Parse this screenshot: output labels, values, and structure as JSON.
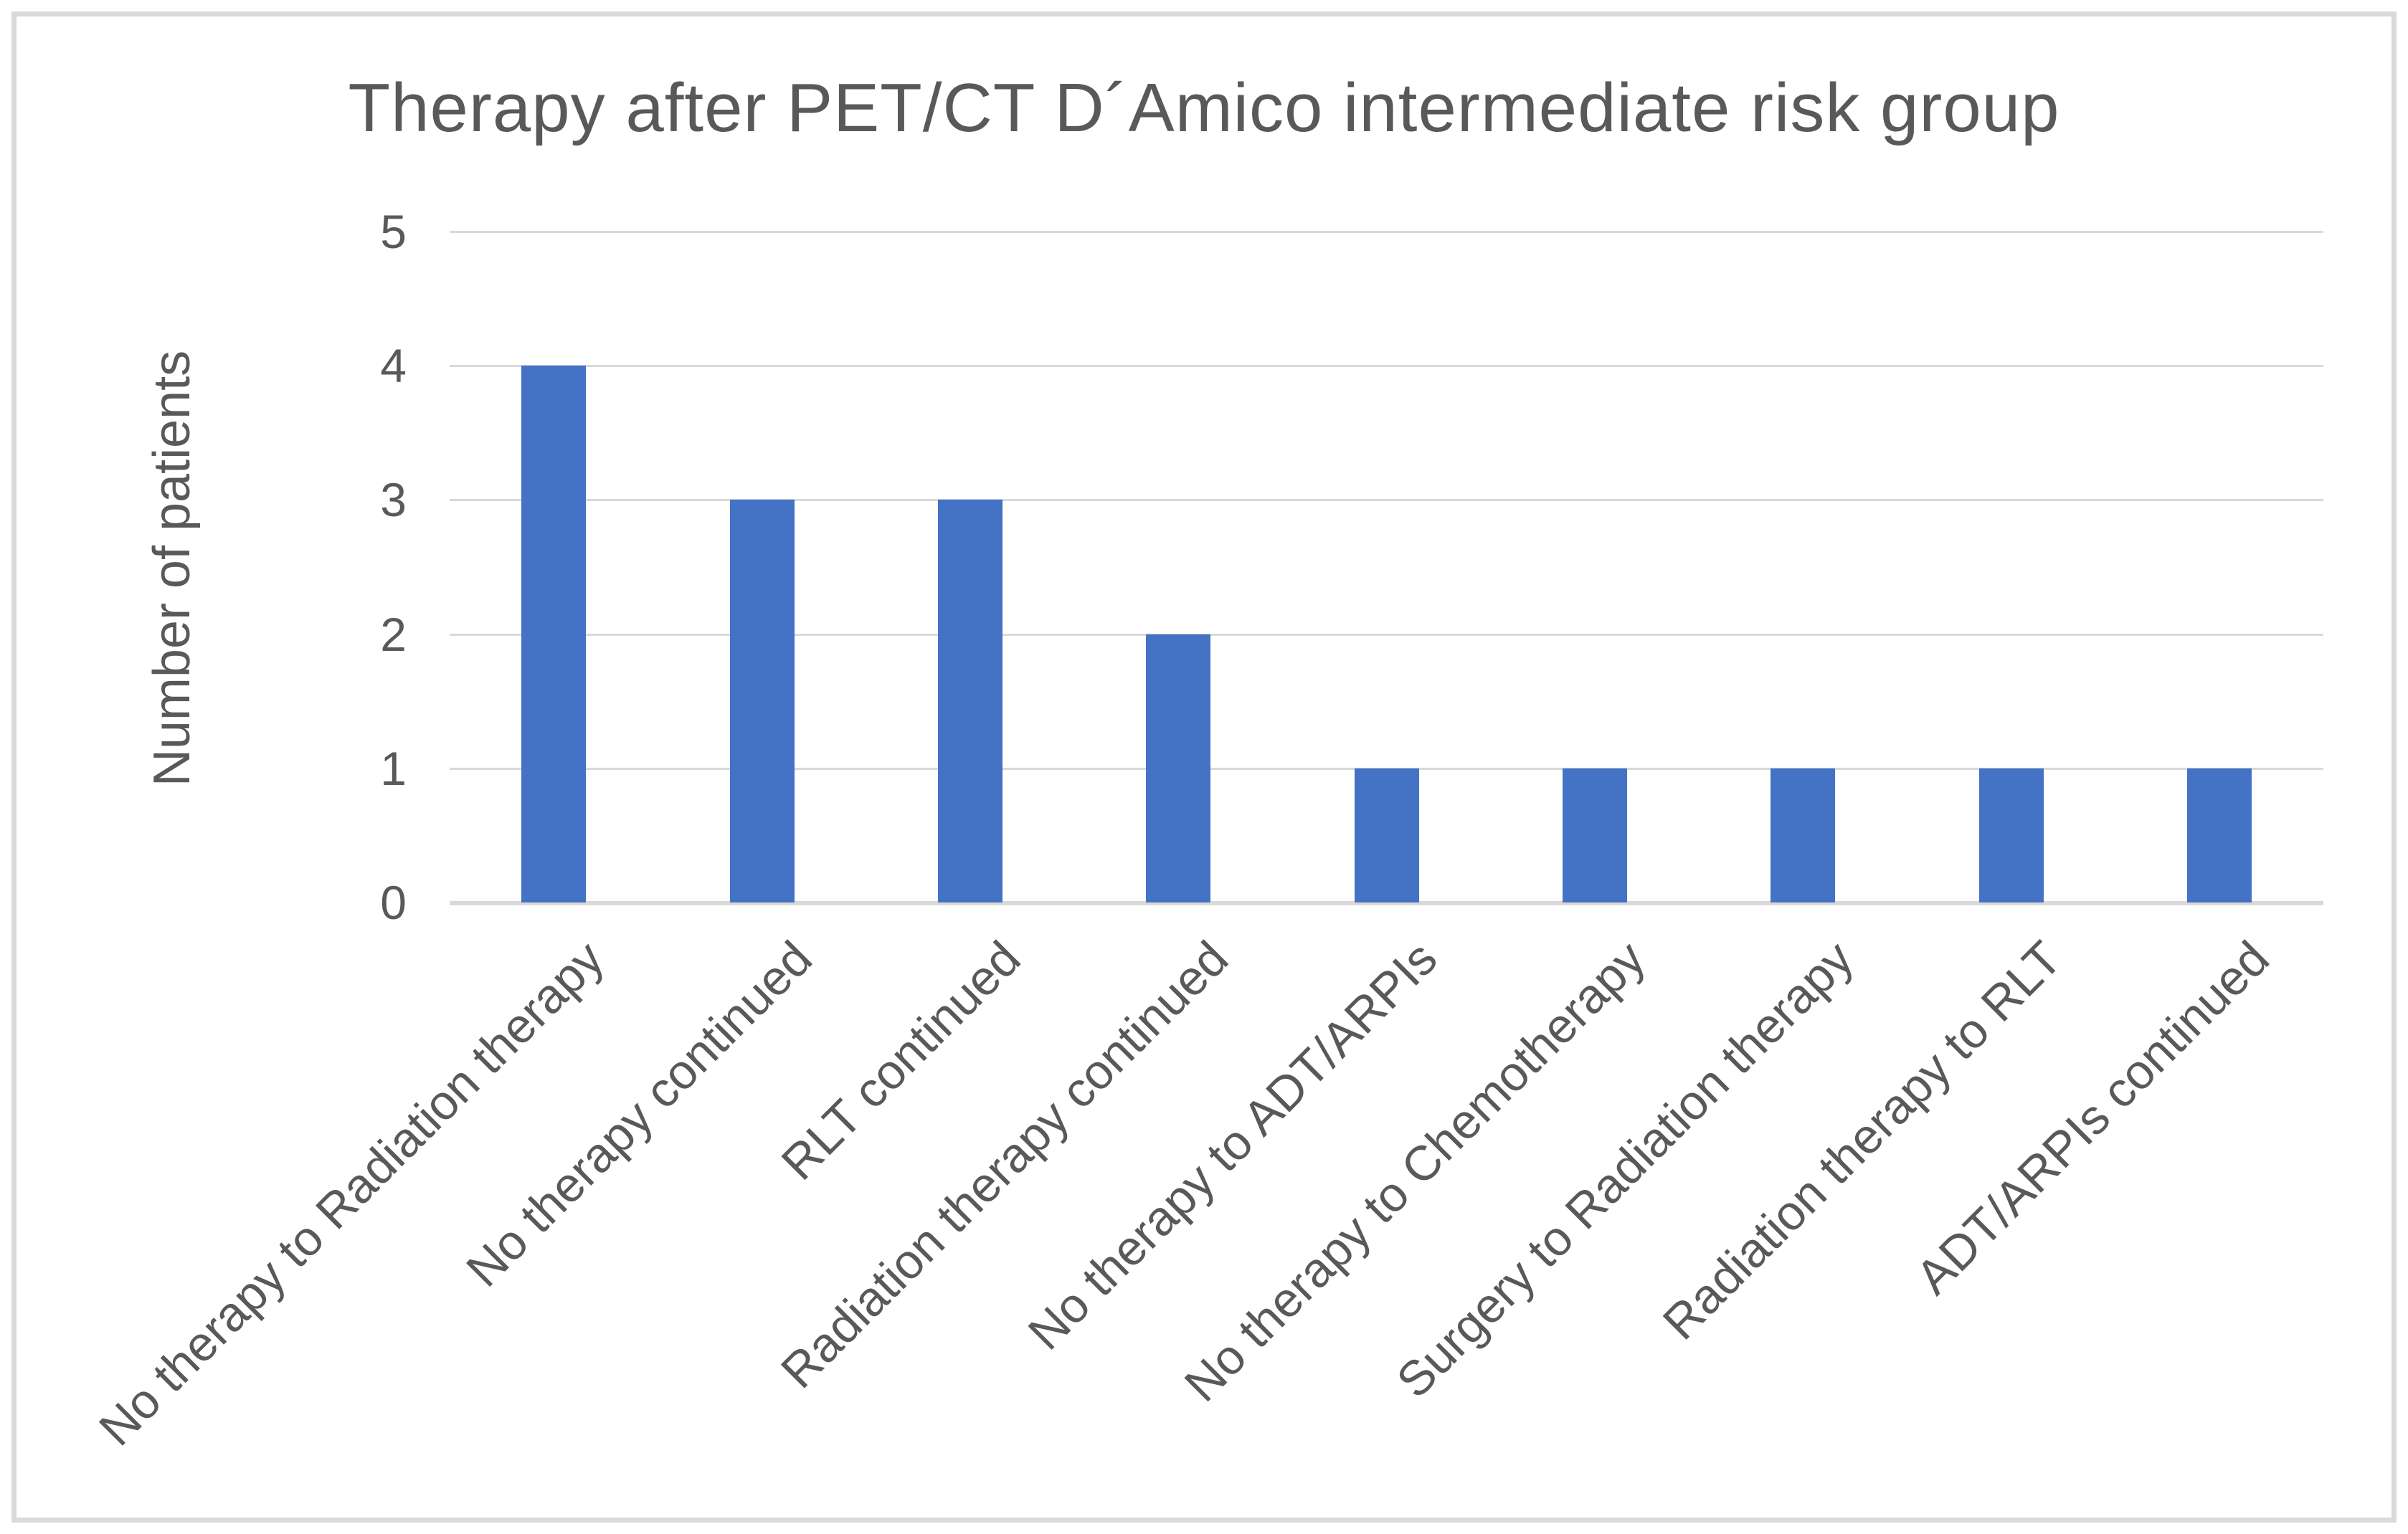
{
  "chart_data": {
    "type": "bar",
    "title": "Therapy after PET/CT D´Amico intermediate risk group",
    "ylabel": "Number of patients",
    "xlabel": "",
    "categories": [
      "No therapy to Radiation therapy",
      "No therapy continued",
      "RLT continued",
      "Radiation therapy continued",
      "No therapy to ADT/ARPIs",
      "No therapy to Chemotherapy",
      "Surgery to Radiation therapy",
      "Radiation therapy to RLT",
      "ADT/ARPIs continued"
    ],
    "values": [
      4,
      3,
      3,
      2,
      1,
      1,
      1,
      1,
      1
    ],
    "ylim": [
      0,
      5
    ],
    "yticks": [
      0,
      1,
      2,
      3,
      4,
      5
    ],
    "grid": true,
    "legend": false,
    "bar_color": "#4472C4",
    "text_color": "#595959",
    "gridline_color": "#d9d9d9",
    "frame_color": "#d9d9d9"
  }
}
